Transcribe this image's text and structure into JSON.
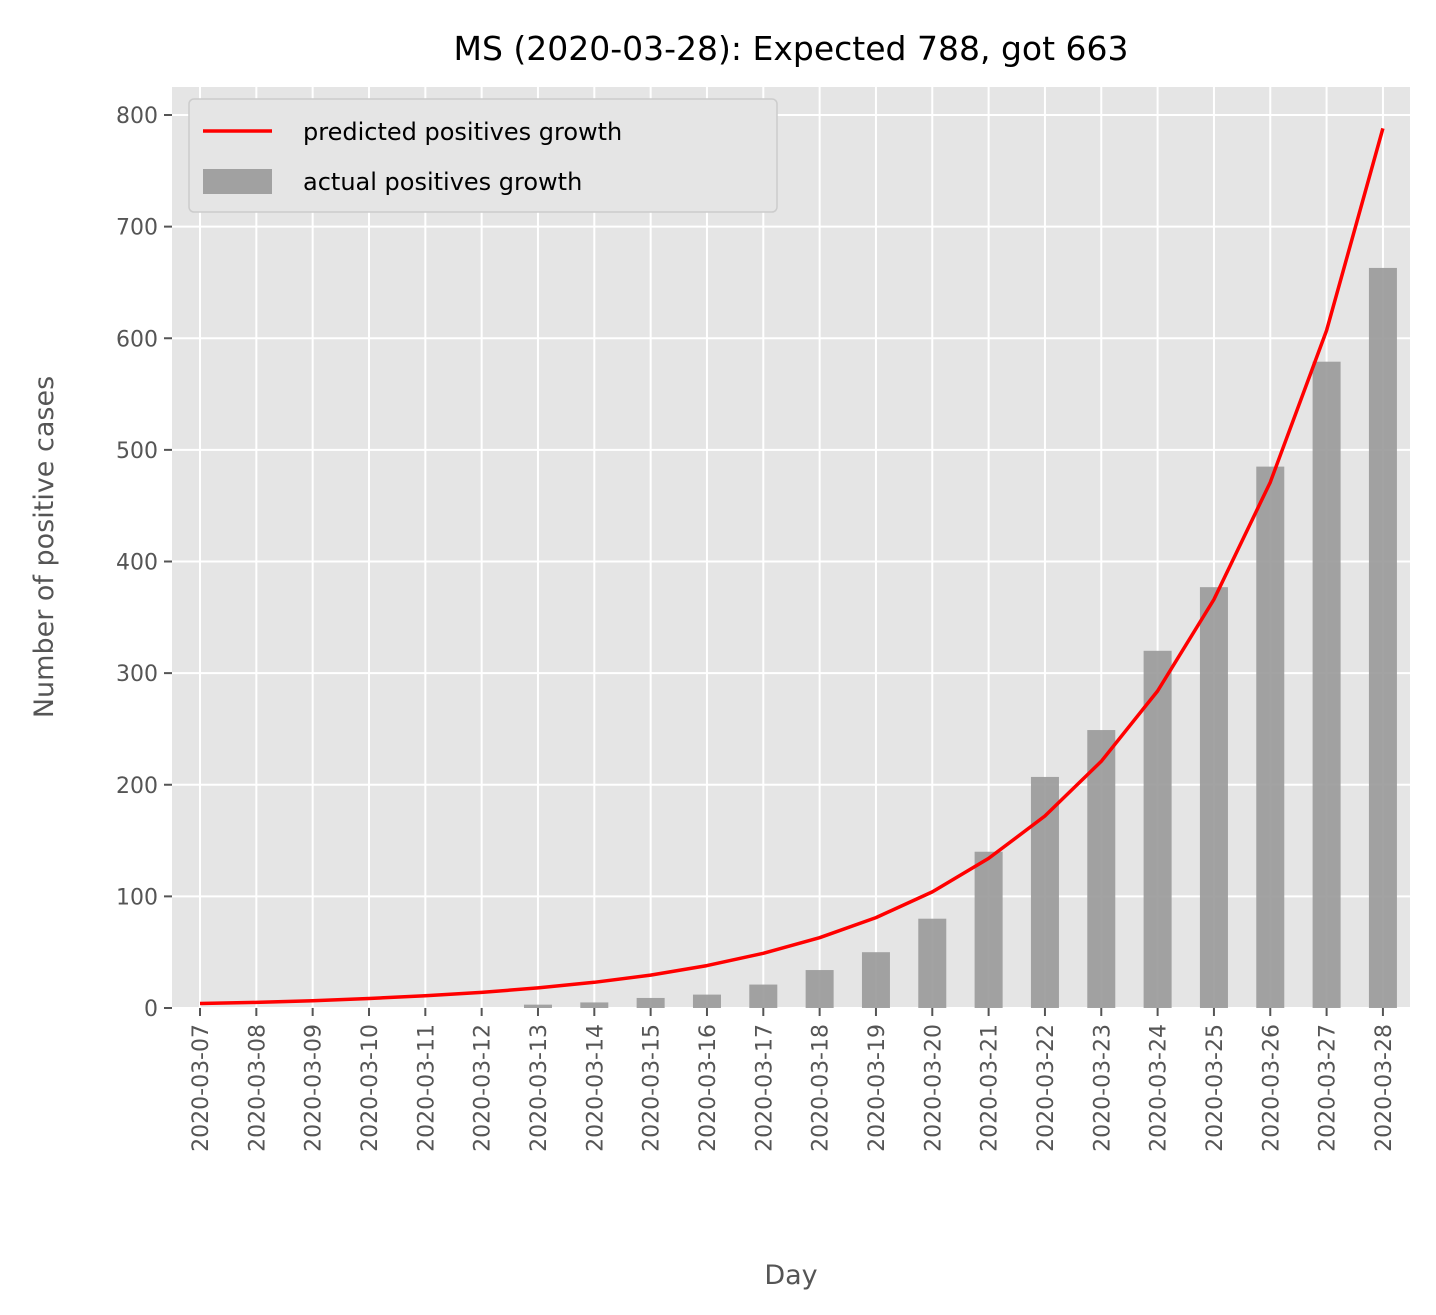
{
  "chart_data": {
    "type": "bar",
    "title": "MS (2020-03-28): Expected 788, got 663",
    "xlabel": "Day",
    "ylabel": "Number of positive cases",
    "ylim": [
      0,
      820
    ],
    "yticks": [
      0,
      100,
      200,
      300,
      400,
      500,
      600,
      700,
      800
    ],
    "grid": true,
    "legend_position": "top-left",
    "categories": [
      "2020-03-07",
      "2020-03-08",
      "2020-03-09",
      "2020-03-10",
      "2020-03-11",
      "2020-03-12",
      "2020-03-13",
      "2020-03-14",
      "2020-03-15",
      "2020-03-16",
      "2020-03-17",
      "2020-03-18",
      "2020-03-19",
      "2020-03-20",
      "2020-03-21",
      "2020-03-22",
      "2020-03-23",
      "2020-03-24",
      "2020-03-25",
      "2020-03-26",
      "2020-03-27",
      "2020-03-28"
    ],
    "series": [
      {
        "name": "predicted positives growth",
        "type": "line",
        "color": "#ff0000",
        "values": [
          4,
          5,
          6.5,
          8.5,
          11,
          14,
          18,
          23,
          29.5,
          38,
          49,
          63,
          81,
          104,
          134,
          172,
          221,
          284,
          366,
          471,
          607,
          788
        ]
      },
      {
        "name": "actual positives growth",
        "type": "bar",
        "color": "#999999",
        "values": [
          0,
          0,
          0,
          0,
          0,
          0,
          3,
          5,
          9,
          12,
          21,
          34,
          50,
          80,
          140,
          207,
          249,
          320,
          377,
          485,
          579,
          663
        ]
      }
    ]
  }
}
